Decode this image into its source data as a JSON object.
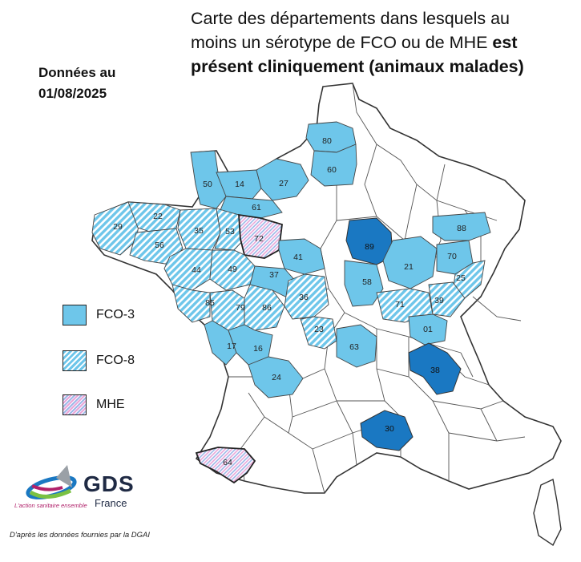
{
  "title": {
    "line1": "Carte des départements dans lesquels au",
    "line2_normal": "moins un sérotype de FCO ou de MHE ",
    "line2_bold": "est",
    "line3_bold": "présent cliniquement (animaux malades)"
  },
  "date": {
    "line1": "Données au",
    "line2": "01/08/2025"
  },
  "legend": [
    {
      "key": "fco3",
      "label": "FCO-3"
    },
    {
      "key": "fco8",
      "label": "FCO-8"
    },
    {
      "key": "mhe",
      "label": "MHE"
    }
  ],
  "colors": {
    "fco3": "#6ec6ea",
    "dark_blue": "#1a78c2",
    "border": "#3a3a3a",
    "map_fill": "#ffffff"
  },
  "departments": [
    {
      "code": "80",
      "category": "fco3"
    },
    {
      "code": "60",
      "category": "fco3"
    },
    {
      "code": "50",
      "category": "fco3"
    },
    {
      "code": "14",
      "category": "fco3"
    },
    {
      "code": "27",
      "category": "fco3"
    },
    {
      "code": "61",
      "category": "fco3"
    },
    {
      "code": "29",
      "category": "fco8"
    },
    {
      "code": "22",
      "category": "fco8"
    },
    {
      "code": "56",
      "category": "fco8"
    },
    {
      "code": "35",
      "category": "fco8"
    },
    {
      "code": "53",
      "category": "fco8"
    },
    {
      "code": "72",
      "category": "mhe"
    },
    {
      "code": "44",
      "category": "fco8"
    },
    {
      "code": "49",
      "category": "fco8"
    },
    {
      "code": "41",
      "category": "fco3"
    },
    {
      "code": "37",
      "category": "fco3"
    },
    {
      "code": "85",
      "category": "fco8"
    },
    {
      "code": "79",
      "category": "fco8"
    },
    {
      "code": "86",
      "category": "fco8"
    },
    {
      "code": "36",
      "category": "fco8"
    },
    {
      "code": "17",
      "category": "fco3"
    },
    {
      "code": "16",
      "category": "fco3"
    },
    {
      "code": "23",
      "category": "fco8"
    },
    {
      "code": "63",
      "category": "fco3"
    },
    {
      "code": "24",
      "category": "fco3"
    },
    {
      "code": "89",
      "category": "dark"
    },
    {
      "code": "58",
      "category": "fco3"
    },
    {
      "code": "21",
      "category": "fco3"
    },
    {
      "code": "88",
      "category": "fco3"
    },
    {
      "code": "70",
      "category": "fco3"
    },
    {
      "code": "25",
      "category": "fco8"
    },
    {
      "code": "39",
      "category": "fco8"
    },
    {
      "code": "71",
      "category": "fco8"
    },
    {
      "code": "01",
      "category": "fco3"
    },
    {
      "code": "38",
      "category": "dark"
    },
    {
      "code": "30",
      "category": "dark"
    },
    {
      "code": "64",
      "category": "mhe"
    }
  ],
  "logo": {
    "name": "GDS",
    "sub": "France",
    "tagline": "L'action sanitaire ensemble"
  },
  "source": "D'après les données fournies par la DGAI"
}
